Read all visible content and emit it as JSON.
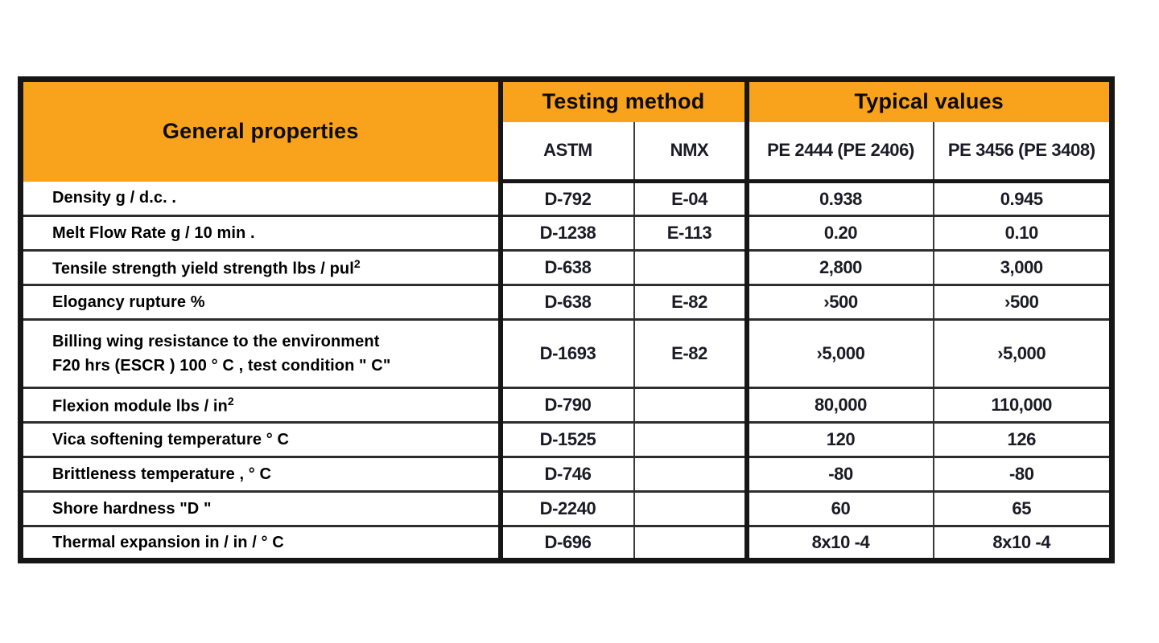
{
  "colors": {
    "header_orange": "#F9A21B",
    "border_dark": "#161616",
    "value_text": "#1B1B26"
  },
  "table": {
    "header": {
      "general_properties": "General properties",
      "testing_method": "Testing method",
      "typical_values": "Typical values",
      "sub_astm": "ASTM",
      "sub_nmx": "NMX",
      "sub_pe1": "PE 2444 (PE 2406)",
      "sub_pe2": "PE 3456 (PE 3408)"
    },
    "rows": [
      {
        "property": "Density g / d.c. .",
        "astm": "D-792",
        "nmx": "E-04",
        "pe1": "0.938",
        "pe2": "0.945"
      },
      {
        "property": "Melt Flow Rate g / 10 min .",
        "astm": "D-1238",
        "nmx": "E-113",
        "pe1": "0.20",
        "pe2": "0.10"
      },
      {
        "property": "Tensile strength yield strength lbs / pul",
        "sup": "2",
        "astm": "D-638",
        "nmx": "",
        "pe1": "2,800",
        "pe2": "3,000"
      },
      {
        "property": "Elogancy rupture %",
        "astm": "D-638",
        "nmx": "E-82",
        "pe1": "›500",
        "pe2": "›500"
      },
      {
        "property": "Billing wing resistance to the environment",
        "property2": "F20 hrs (ESCR ) 100 ° C , test condition \" C\"",
        "astm": "D-1693",
        "nmx": "E-82",
        "pe1": "›5,000",
        "pe2": "›5,000"
      },
      {
        "property": "Flexion module lbs / in",
        "sup": "2",
        "astm": "D-790",
        "nmx": "",
        "pe1": "80,000",
        "pe2": "110,000"
      },
      {
        "property": "Vica softening temperature ° C",
        "astm": "D-1525",
        "nmx": "",
        "pe1": "120",
        "pe2": "126"
      },
      {
        "property": "Brittleness temperature , ° C",
        "astm": "D-746",
        "nmx": "",
        "pe1": "-80",
        "pe2": "-80"
      },
      {
        "property": "Shore hardness \"D \"",
        "astm": "D-2240",
        "nmx": "",
        "pe1": "60",
        "pe2": "65"
      },
      {
        "property": "Thermal expansion in / in / ° C",
        "astm": "D-696",
        "nmx": "",
        "pe1": "8x10 -4",
        "pe2": "8x10 -4"
      }
    ]
  }
}
